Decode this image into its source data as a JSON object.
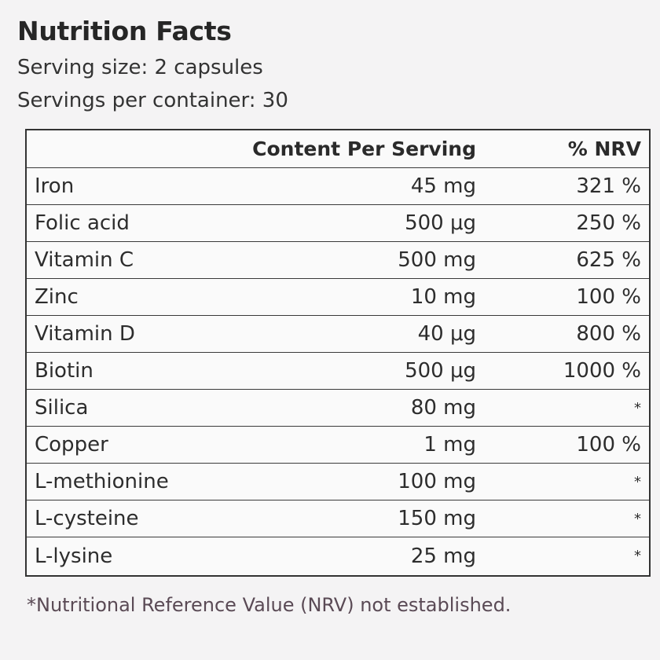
{
  "title": "Nutrition Facts",
  "serving_size": "Serving size: 2 capsules",
  "servings_per_container": "Servings per container: 30",
  "table": {
    "headers": {
      "name": "",
      "amount": "Content Per Serving",
      "nrv": "% NRV"
    },
    "rows": [
      {
        "name": "Iron",
        "amount": "45 mg",
        "nrv": "321 %"
      },
      {
        "name": "Folic acid",
        "amount": "500 μg",
        "nrv": "250 %"
      },
      {
        "name": "Vitamin C",
        "amount": "500 mg",
        "nrv": "625 %"
      },
      {
        "name": "Zinc",
        "amount": "10 mg",
        "nrv": "100 %"
      },
      {
        "name": "Vitamin D",
        "amount": "40 μg",
        "nrv": "800 %"
      },
      {
        "name": "Biotin",
        "amount": "500 μg",
        "nrv": "1000 %"
      },
      {
        "name": "Silica",
        "amount": "80 mg",
        "nrv": "*"
      },
      {
        "name": "Copper",
        "amount": "1 mg",
        "nrv": "100 %"
      },
      {
        "name": "L-methionine",
        "amount": "100 mg",
        "nrv": "*"
      },
      {
        "name": "L-cysteine",
        "amount": "150 mg",
        "nrv": "*"
      },
      {
        "name": "L-lysine",
        "amount": "25 mg",
        "nrv": "*"
      }
    ]
  },
  "footnote": "*Nutritional Reference Value (NRV) not established."
}
